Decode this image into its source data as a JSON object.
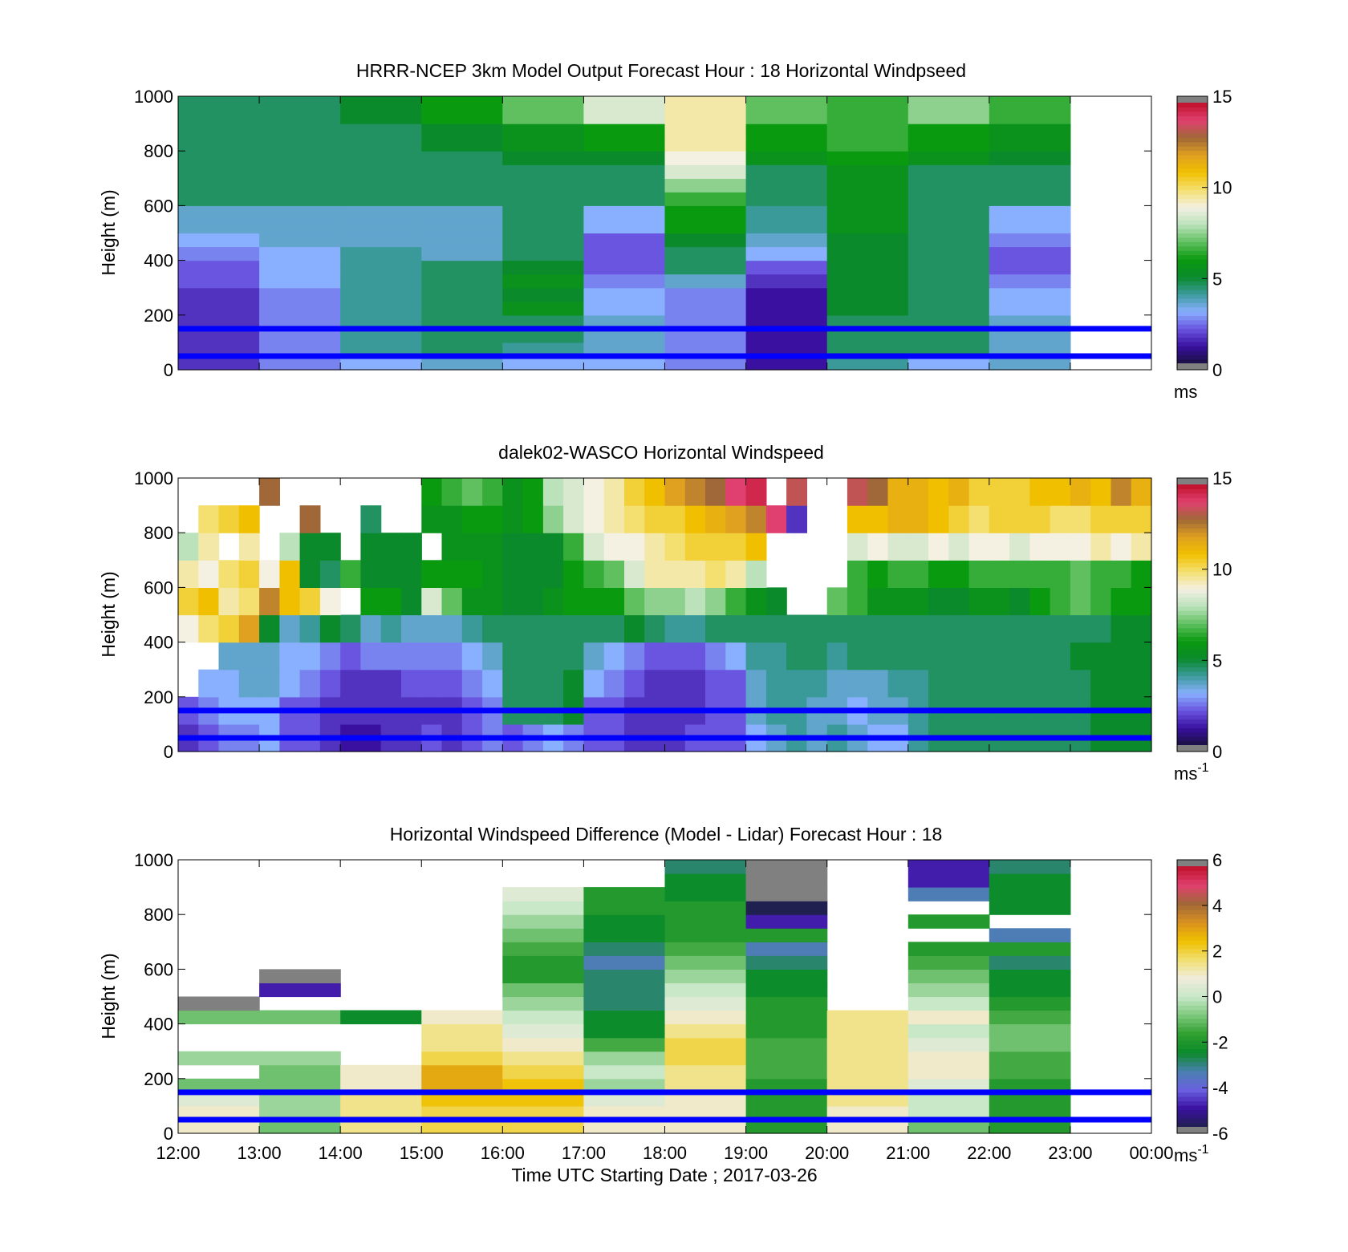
{
  "figure": {
    "xlabel": "Time UTC  Starting Date ; 2017-03-26",
    "xticks": [
      "12:00",
      "13:00",
      "14:00",
      "15:00",
      "16:00",
      "17:00",
      "18:00",
      "19:00",
      "20:00",
      "21:00",
      "22:00",
      "23:00",
      "00:00"
    ],
    "yticks": [
      "0",
      "200",
      "400",
      "600",
      "800",
      "1000"
    ],
    "ylabel": "Height (m)",
    "reference_heights_m": [
      50,
      150
    ],
    "reference_line_color": "#0000ff"
  },
  "colormaps": {
    "speed": [
      "#1a1040",
      "#3a10a0",
      "#6a55e0",
      "#88b0ff",
      "#3a9a9a",
      "#0a8a2a",
      "#0a9a10",
      "#60c060",
      "#bce2bc",
      "#f4f0e2",
      "#f4e070",
      "#f0c000",
      "#e0a020",
      "#a06838",
      "#e04070",
      "#c0102a"
    ],
    "difference": [
      "#202050",
      "#3a10a0",
      "#6a60e0",
      "#4a80b0",
      "#0a8a2a",
      "#30a030",
      "#7cc87c",
      "#c8e8c8",
      "#f0ecdc",
      "#f0e070",
      "#f0c000",
      "#d89020",
      "#a06838",
      "#e04070",
      "#c0102a"
    ]
  },
  "chart_data": [
    {
      "type": "heatmap",
      "title": "HRRR-NCEP 3km Model Output   Forecast Hour : 18 Horizontal Windpseed",
      "xlabel": "",
      "ylabel": "Height (m)",
      "xlim": [
        "12:00",
        "00:00"
      ],
      "ylim": [
        0,
        1000
      ],
      "colorbar": {
        "range": [
          0,
          15
        ],
        "ticks": [
          0,
          5,
          10,
          15
        ],
        "unit": "ms"
      },
      "x_hours": [
        "12:00",
        "13:00",
        "14:00",
        "15:00",
        "16:00",
        "17:00",
        "18:00",
        "19:00",
        "20:00",
        "21:00",
        "22:00"
      ],
      "y_levels_m": [
        25,
        75,
        125,
        175,
        225,
        275,
        325,
        375,
        425,
        475,
        525,
        575,
        625,
        675,
        725,
        775,
        825,
        875,
        925,
        975
      ],
      "values_ms": [
        [
          1.5,
          2.5,
          3.0,
          3.5,
          3.0,
          3.0,
          2.5,
          1.0,
          4.0,
          3.0,
          3.5
        ],
        [
          1.5,
          2.5,
          4.0,
          4.5,
          4.0,
          3.5,
          2.5,
          1.0,
          4.5,
          4.5,
          3.5
        ],
        [
          1.5,
          2.5,
          4.0,
          4.5,
          4.5,
          3.5,
          2.5,
          1.0,
          4.5,
          4.5,
          3.5
        ],
        [
          1.5,
          2.5,
          4.0,
          4.5,
          4.5,
          3.5,
          2.5,
          1.0,
          4.5,
          4.5,
          3.5
        ],
        [
          1.5,
          2.5,
          4.0,
          4.5,
          5.5,
          3.0,
          2.5,
          1.0,
          5.0,
          4.5,
          3.0
        ],
        [
          1.5,
          2.5,
          4.0,
          4.5,
          5.0,
          3.0,
          2.5,
          1.0,
          5.0,
          4.5,
          3.0
        ],
        [
          2.0,
          3.0,
          4.0,
          4.5,
          5.5,
          2.5,
          3.5,
          1.5,
          5.0,
          4.5,
          2.5
        ],
        [
          2.0,
          3.0,
          4.0,
          4.5,
          5.0,
          2.0,
          4.5,
          2.0,
          5.0,
          4.5,
          2.0
        ],
        [
          2.5,
          3.0,
          4.0,
          3.5,
          4.5,
          2.0,
          4.5,
          3.0,
          5.0,
          4.5,
          2.0
        ],
        [
          3.0,
          3.5,
          3.5,
          3.5,
          4.5,
          2.0,
          5.0,
          3.5,
          5.0,
          4.5,
          2.5
        ],
        [
          3.5,
          3.5,
          3.5,
          3.5,
          4.5,
          3.0,
          6.0,
          4.0,
          5.5,
          4.5,
          3.0
        ],
        [
          3.5,
          3.5,
          3.5,
          3.5,
          4.5,
          3.0,
          6.0,
          4.0,
          5.5,
          4.5,
          3.0
        ],
        [
          4.5,
          4.5,
          4.5,
          4.5,
          4.5,
          4.5,
          6.5,
          4.5,
          5.5,
          4.5,
          4.5
        ],
        [
          4.5,
          4.5,
          4.5,
          4.5,
          4.5,
          4.5,
          7.5,
          4.5,
          5.5,
          4.5,
          4.5
        ],
        [
          4.5,
          4.5,
          4.5,
          4.5,
          4.5,
          4.5,
          8.5,
          4.5,
          5.5,
          4.5,
          4.5
        ],
        [
          4.5,
          4.5,
          4.5,
          4.5,
          5.0,
          5.0,
          9.0,
          5.5,
          6.0,
          5.5,
          5.0
        ],
        [
          4.5,
          4.5,
          4.5,
          5.0,
          5.5,
          6.0,
          9.5,
          6.0,
          6.5,
          6.0,
          5.5
        ],
        [
          4.5,
          4.5,
          4.5,
          5.0,
          5.5,
          6.0,
          9.5,
          6.0,
          6.5,
          6.0,
          5.5
        ],
        [
          4.5,
          4.5,
          5.0,
          6.0,
          7.0,
          8.5,
          9.5,
          7.0,
          6.5,
          7.5,
          6.5
        ],
        [
          4.5,
          4.5,
          5.0,
          6.0,
          7.0,
          8.5,
          9.5,
          7.0,
          6.5,
          7.5,
          6.5
        ]
      ]
    },
    {
      "type": "heatmap",
      "title": "dalek02-WASCO  Horizontal Windspeed",
      "xlabel": "",
      "ylabel": "Height (m)",
      "xlim": [
        "12:00",
        "00:00"
      ],
      "ylim": [
        0,
        1000
      ],
      "colorbar": {
        "range": [
          0,
          15
        ],
        "ticks": [
          0,
          5,
          10,
          15
        ],
        "unit": "ms",
        "unit_exponent": "-1"
      },
      "x_hours": [
        "12:00",
        "12:15",
        "12:30",
        "12:45",
        "13:00",
        "13:15",
        "13:30",
        "13:45",
        "14:00",
        "14:15",
        "14:30",
        "14:45",
        "15:00",
        "15:15",
        "15:30",
        "15:45",
        "16:00",
        "16:15",
        "16:30",
        "16:45",
        "17:00",
        "17:15",
        "17:30",
        "17:45",
        "18:00",
        "18:15",
        "18:30",
        "18:45",
        "19:00",
        "19:15",
        "19:30",
        "19:45",
        "20:00",
        "20:15",
        "20:30",
        "20:45",
        "21:00",
        "21:15",
        "21:30",
        "21:45",
        "22:00",
        "22:15",
        "22:30",
        "22:45",
        "23:00",
        "23:15",
        "23:30",
        "23:45"
      ],
      "y_levels_m": [
        50,
        150,
        250,
        350,
        450,
        550,
        650,
        750,
        850,
        950
      ],
      "values_ms": [
        [
          1.5,
          2.0,
          2.5,
          2.5,
          3.0,
          2.0,
          2.0,
          1.5,
          1.0,
          1.0,
          1.5,
          1.5,
          2.0,
          1.5,
          2.0,
          2.5,
          2.0,
          2.5,
          3.0,
          2.5,
          2.0,
          2.0,
          1.5,
          1.5,
          1.5,
          2.0,
          2.0,
          2.0,
          3.0,
          3.5,
          4.0,
          3.5,
          4.0,
          3.5,
          3.0,
          3.0,
          4.0,
          4.5,
          4.5,
          4.5,
          4.5,
          4.5,
          4.5,
          4.5,
          4.5,
          5.0,
          5.0,
          5.0
        ],
        [
          2.0,
          2.5,
          3.0,
          3.0,
          3.0,
          2.0,
          2.0,
          1.5,
          1.5,
          1.5,
          1.5,
          1.5,
          1.5,
          1.5,
          2.0,
          2.5,
          4.5,
          4.5,
          4.5,
          5.0,
          2.0,
          2.0,
          1.5,
          1.5,
          1.5,
          1.5,
          2.0,
          2.0,
          3.5,
          4.0,
          4.0,
          3.5,
          3.5,
          3.0,
          3.5,
          3.5,
          4.0,
          4.5,
          4.5,
          4.5,
          4.5,
          4.5,
          4.5,
          4.5,
          4.5,
          5.0,
          5.0,
          5.0
        ],
        [
          null,
          3.0,
          3.0,
          3.5,
          3.5,
          3.0,
          2.5,
          2.0,
          1.5,
          1.5,
          1.5,
          2.0,
          2.0,
          2.0,
          2.5,
          3.0,
          4.5,
          4.5,
          4.5,
          5.0,
          3.0,
          2.5,
          2.0,
          1.5,
          1.5,
          1.5,
          2.0,
          2.0,
          3.5,
          4.0,
          4.0,
          4.0,
          3.5,
          3.5,
          3.5,
          4.0,
          4.0,
          4.5,
          4.5,
          4.5,
          4.5,
          4.5,
          4.5,
          4.5,
          4.5,
          5.0,
          5.0,
          5.0
        ],
        [
          null,
          null,
          3.5,
          3.5,
          3.5,
          3.0,
          3.0,
          2.5,
          2.0,
          2.5,
          2.5,
          2.5,
          2.5,
          2.5,
          3.0,
          3.5,
          4.5,
          4.5,
          4.5,
          4.5,
          3.5,
          3.0,
          2.5,
          2.0,
          2.0,
          2.0,
          2.5,
          3.0,
          4.0,
          4.0,
          4.5,
          4.5,
          4.0,
          4.5,
          4.5,
          4.5,
          4.5,
          4.5,
          4.5,
          4.5,
          4.5,
          4.5,
          4.5,
          4.5,
          5.0,
          5.0,
          5.0,
          5.0
        ],
        [
          9.0,
          10.0,
          10.5,
          12.0,
          5.0,
          3.5,
          4.0,
          5.0,
          4.5,
          3.5,
          4.0,
          3.5,
          3.5,
          3.5,
          4.0,
          4.5,
          4.5,
          4.5,
          4.5,
          4.5,
          4.5,
          4.5,
          5.0,
          4.5,
          4.0,
          4.0,
          4.5,
          4.5,
          4.5,
          4.5,
          4.5,
          4.5,
          4.5,
          4.5,
          4.5,
          4.5,
          4.5,
          4.5,
          4.5,
          4.5,
          4.5,
          4.5,
          4.5,
          4.5,
          4.5,
          4.5,
          5.0,
          5.0
        ],
        [
          10.5,
          11.0,
          9.5,
          10.0,
          12.5,
          11.0,
          10.5,
          9.0,
          null,
          6.0,
          6.0,
          5.0,
          8.5,
          7.0,
          5.5,
          5.5,
          5.0,
          5.0,
          5.5,
          6.0,
          6.0,
          6.0,
          7.0,
          7.5,
          7.5,
          8.0,
          7.5,
          6.5,
          5.5,
          5.0,
          null,
          null,
          7.0,
          6.5,
          5.5,
          5.5,
          5.5,
          5.0,
          5.0,
          5.5,
          5.5,
          5.0,
          6.0,
          6.5,
          7.0,
          6.5,
          6.0,
          6.0
        ],
        [
          9.5,
          9.0,
          10.0,
          10.5,
          9.0,
          11.0,
          5.0,
          4.5,
          6.5,
          5.0,
          5.0,
          5.0,
          6.0,
          6.0,
          6.0,
          5.5,
          5.0,
          5.0,
          5.0,
          6.0,
          6.5,
          7.0,
          8.5,
          9.5,
          9.5,
          9.5,
          10.0,
          9.5,
          8.0,
          null,
          null,
          null,
          null,
          6.5,
          6.0,
          6.5,
          6.5,
          6.0,
          6.0,
          6.5,
          6.5,
          6.5,
          6.5,
          6.5,
          7.0,
          6.5,
          6.5,
          6.0
        ],
        [
          8.0,
          9.5,
          null,
          9.5,
          null,
          8.0,
          5.0,
          5.0,
          null,
          5.0,
          5.0,
          5.0,
          null,
          5.5,
          5.5,
          5.5,
          5.0,
          5.0,
          5.0,
          6.5,
          8.5,
          9.0,
          9.0,
          9.5,
          10.0,
          10.5,
          10.5,
          10.5,
          11.0,
          null,
          null,
          null,
          null,
          8.5,
          9.0,
          8.5,
          8.5,
          9.0,
          8.5,
          9.0,
          9.0,
          8.5,
          9.0,
          9.0,
          9.0,
          9.5,
          9.0,
          9.5
        ],
        [
          null,
          10.0,
          10.5,
          11.0,
          null,
          null,
          13.0,
          null,
          null,
          4.5,
          null,
          null,
          5.5,
          5.5,
          6.0,
          6.0,
          5.5,
          6.0,
          7.5,
          8.5,
          9.0,
          9.5,
          10.0,
          10.5,
          10.5,
          11.0,
          11.5,
          12.0,
          12.5,
          14.0,
          1.5,
          null,
          null,
          11.0,
          11.0,
          11.5,
          11.5,
          11.0,
          10.5,
          10.0,
          10.5,
          10.5,
          10.5,
          10.0,
          10.0,
          10.5,
          10.5,
          10.5
        ],
        [
          null,
          null,
          null,
          null,
          13.0,
          null,
          null,
          null,
          null,
          null,
          null,
          null,
          6.0,
          6.5,
          7.0,
          6.5,
          5.5,
          6.0,
          8.0,
          8.5,
          9.0,
          9.5,
          10.5,
          11.0,
          12.0,
          12.5,
          13.0,
          14.0,
          14.5,
          null,
          13.5,
          null,
          null,
          13.5,
          13.0,
          11.5,
          11.5,
          11.0,
          11.5,
          10.5,
          10.5,
          10.5,
          11.0,
          11.0,
          11.5,
          11.0,
          12.5,
          11.5
        ]
      ]
    },
    {
      "type": "heatmap",
      "title": "Horizontal Windspeed Difference (Model - Lidar) Forecast Hour : 18",
      "xlabel": "Time UTC  Starting Date ; 2017-03-26",
      "ylabel": "Height (m)",
      "xlim": [
        "12:00",
        "00:00"
      ],
      "ylim": [
        0,
        1000
      ],
      "colorbar": {
        "range": [
          -6,
          6
        ],
        "ticks": [
          -6,
          -4,
          -2,
          0,
          2,
          4,
          6
        ],
        "unit": "ms",
        "unit_exponent": "-1"
      },
      "x_hours": [
        "12:00",
        "13:00",
        "14:00",
        "15:00",
        "16:00",
        "17:00",
        "18:00",
        "19:00",
        "20:00",
        "21:00",
        "22:00"
      ],
      "y_levels_m": [
        25,
        75,
        125,
        175,
        225,
        275,
        325,
        375,
        425,
        475,
        525,
        575,
        625,
        675,
        725,
        775,
        825,
        875,
        925,
        975
      ],
      "values_ms": [
        [
          1.0,
          -1.0,
          1.5,
          2.0,
          2.0,
          1.0,
          1.0,
          -2.0,
          1.0,
          -1.0,
          -2.0
        ],
        [
          1.0,
          -0.5,
          1.5,
          2.0,
          2.0,
          1.0,
          1.0,
          -2.0,
          1.0,
          0.0,
          -2.0
        ],
        [
          0.5,
          -0.5,
          1.5,
          2.5,
          2.5,
          0.5,
          1.0,
          -2.0,
          1.5,
          0.0,
          -2.0
        ],
        [
          -1.0,
          -1.0,
          1.0,
          3.0,
          2.5,
          -0.5,
          1.5,
          -2.0,
          1.5,
          0.5,
          -2.0
        ],
        [
          null,
          -1.0,
          1.0,
          3.0,
          2.0,
          0.0,
          1.5,
          -1.5,
          1.5,
          1.0,
          -1.5
        ],
        [
          -0.5,
          -0.5,
          null,
          2.0,
          1.5,
          -0.5,
          2.0,
          -1.5,
          1.5,
          1.0,
          -1.5
        ],
        [
          null,
          null,
          null,
          1.5,
          1.0,
          -1.5,
          2.0,
          -1.5,
          1.5,
          0.5,
          -1.0
        ],
        [
          null,
          null,
          null,
          1.5,
          0.5,
          -2.5,
          1.5,
          -2.0,
          1.5,
          0.0,
          -1.0
        ],
        [
          -1.0,
          -1.0,
          -2.5,
          1.0,
          0.0,
          -2.5,
          1.0,
          -2.0,
          1.5,
          1.0,
          -1.5
        ],
        [
          -7.0,
          null,
          null,
          null,
          -0.5,
          -3.0,
          0.5,
          -2.0,
          null,
          0.0,
          -2.0
        ],
        [
          null,
          -5.0,
          null,
          null,
          -1.0,
          -3.0,
          0.0,
          -2.5,
          null,
          -0.5,
          -2.5
        ],
        [
          null,
          -7.0,
          null,
          null,
          -2.0,
          -3.0,
          -0.5,
          -2.5,
          null,
          -1.0,
          -2.5
        ],
        [
          null,
          null,
          null,
          null,
          -2.0,
          -3.5,
          -1.0,
          -3.0,
          null,
          -1.5,
          -3.0
        ],
        [
          null,
          null,
          null,
          null,
          -1.5,
          -3.0,
          -1.5,
          -3.5,
          null,
          -2.0,
          -2.0
        ],
        [
          null,
          null,
          null,
          null,
          -1.0,
          -2.5,
          -2.0,
          -2.0,
          null,
          null,
          -3.5
        ],
        [
          null,
          null,
          null,
          null,
          -0.5,
          -2.5,
          -2.0,
          -5.0,
          null,
          -2.0,
          null
        ],
        [
          null,
          null,
          null,
          null,
          0.0,
          -2.0,
          -2.0,
          -6.0,
          null,
          null,
          -2.5
        ],
        [
          null,
          null,
          null,
          null,
          0.5,
          -2.0,
          -2.5,
          -7.0,
          null,
          -3.5,
          -2.5
        ],
        [
          null,
          null,
          null,
          null,
          null,
          null,
          -2.5,
          -7.0,
          null,
          -5.0,
          -2.5
        ],
        [
          null,
          null,
          null,
          null,
          null,
          null,
          -3.0,
          -7.0,
          null,
          -5.0,
          -3.0
        ]
      ]
    }
  ]
}
